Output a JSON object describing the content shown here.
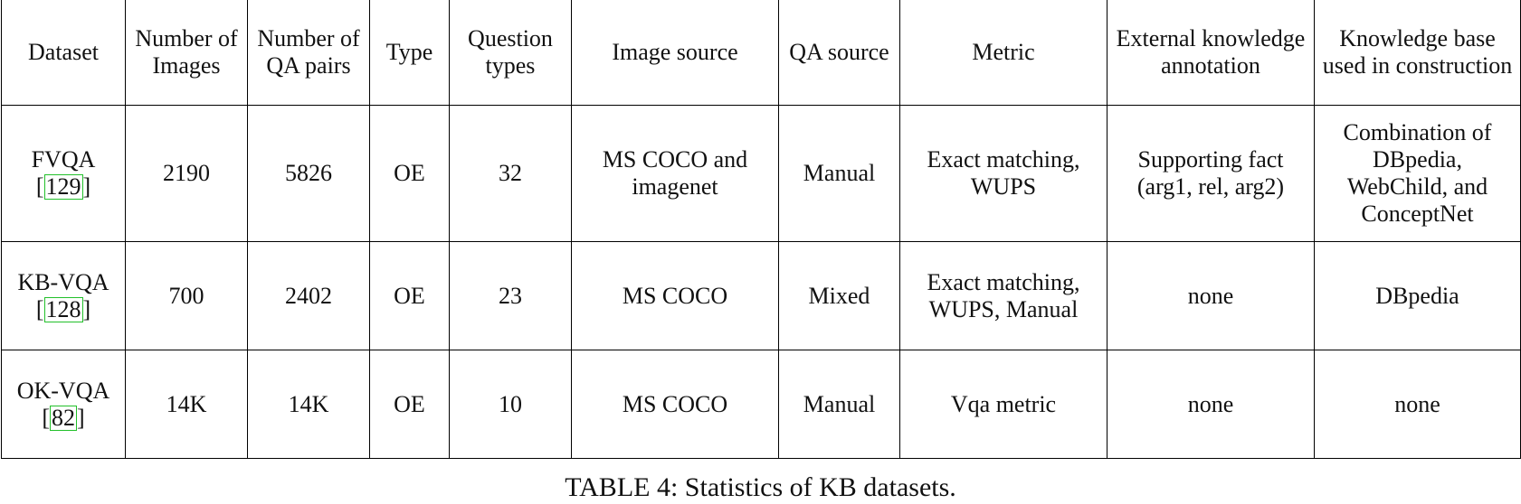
{
  "table": {
    "columns": [
      "Dataset",
      "Number of Images",
      "Number of QA pairs",
      "Type",
      "Question types",
      "Image source",
      "QA source",
      "Metric",
      "External knowledge annotation",
      "Knowledge base used in construction"
    ],
    "rows": [
      {
        "dataset": "FVQA",
        "cite": "129",
        "images": "2190",
        "qa_pairs": "5826",
        "type": "OE",
        "question_types": "32",
        "image_source": "MS COCO and imagenet",
        "qa_source": "Manual",
        "metric": "Exact matching, WUPS",
        "annotation": "Supporting fact (arg1, rel, arg2)",
        "knowledge_base": "Combination of DBpedia, WebChild, and ConceptNet"
      },
      {
        "dataset": "KB-VQA",
        "cite": "128",
        "images": "700",
        "qa_pairs": "2402",
        "type": "OE",
        "question_types": "23",
        "image_source": "MS COCO",
        "qa_source": "Mixed",
        "metric": "Exact matching, WUPS, Manual",
        "annotation": "none",
        "knowledge_base": "DBpedia"
      },
      {
        "dataset": "OK-VQA",
        "cite": "82",
        "images": "14K",
        "qa_pairs": "14K",
        "type": "OE",
        "question_types": "10",
        "image_source": "MS COCO",
        "qa_source": "Manual",
        "metric": "Vqa metric",
        "annotation": "none",
        "knowledge_base": "none"
      }
    ]
  },
  "caption": "TABLE 4: Statistics of KB datasets.",
  "colors": {
    "border": "#000000",
    "citation_box": "#22c02a"
  }
}
